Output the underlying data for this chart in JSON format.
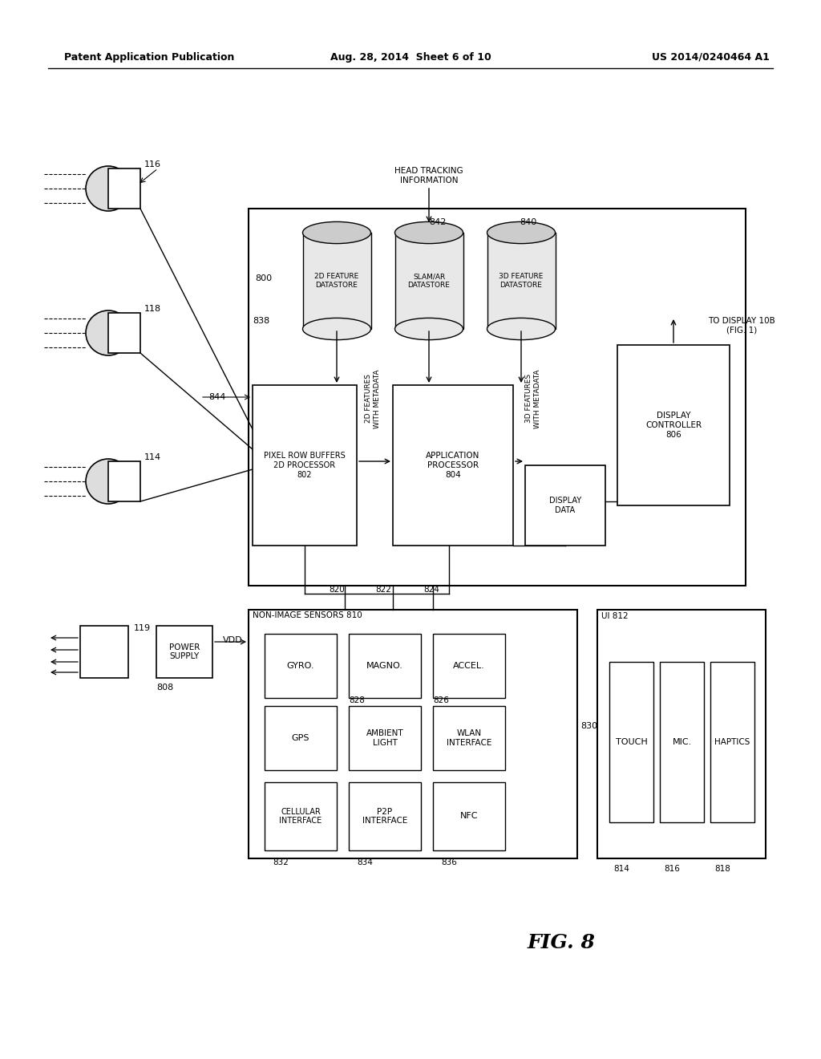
{
  "bg_color": "#ffffff",
  "header_left": "Patent Application Publication",
  "header_center": "Aug. 28, 2014  Sheet 6 of 10",
  "header_right": "US 2014/0240464 A1",
  "fig_label": "FIG. 8"
}
